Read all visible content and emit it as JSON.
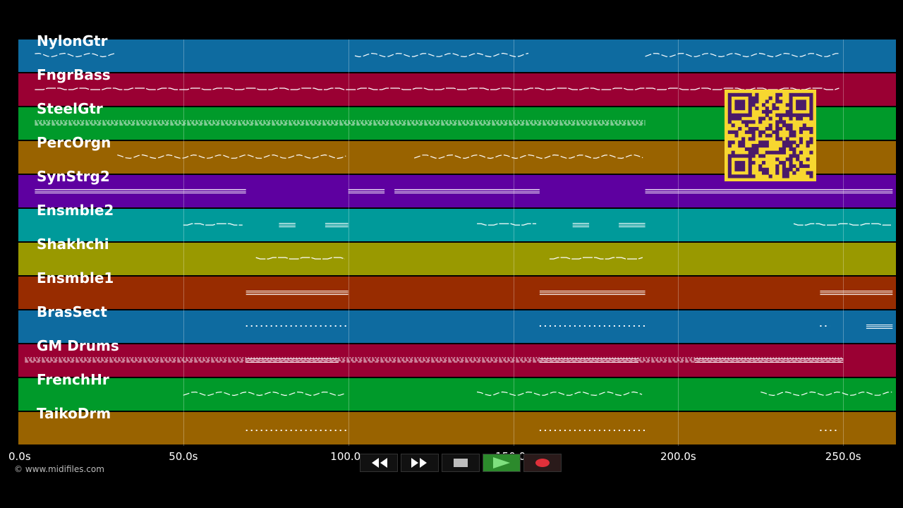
{
  "tracks": [
    {
      "name": "NylonGtr",
      "color": "#0e6ba0",
      "notes": [
        [
          5,
          30,
          "wave"
        ],
        [
          102,
          155,
          "wave"
        ],
        [
          190,
          250,
          "wave"
        ]
      ]
    },
    {
      "name": "FngrBass",
      "color": "#9a0033",
      "notes": [
        [
          5,
          250,
          "line"
        ]
      ]
    },
    {
      "name": "SteelGtr",
      "color": "#009a2a",
      "notes": [
        [
          5,
          190,
          "dense"
        ]
      ]
    },
    {
      "name": "PercOrgn",
      "color": "#996300",
      "notes": [
        [
          30,
          100,
          "wave"
        ],
        [
          120,
          190,
          "wave"
        ]
      ]
    },
    {
      "name": "SynStrg2",
      "color": "#5e00a0",
      "notes": [
        [
          5,
          69,
          "bar"
        ],
        [
          100,
          111,
          "bar"
        ],
        [
          114,
          158,
          "bar"
        ],
        [
          190,
          250,
          "bar"
        ],
        [
          245,
          265,
          "bar"
        ]
      ]
    },
    {
      "name": "Ensmble2",
      "color": "#009a9a",
      "notes": [
        [
          50,
          69,
          "line"
        ],
        [
          79,
          84,
          "bar"
        ],
        [
          93,
          100,
          "bar"
        ],
        [
          139,
          158,
          "line"
        ],
        [
          168,
          173,
          "bar"
        ],
        [
          182,
          190,
          "bar"
        ],
        [
          235,
          265,
          "line"
        ]
      ]
    },
    {
      "name": "Shakhchi",
      "color": "#999900",
      "notes": [
        [
          72,
          100,
          "line"
        ],
        [
          161,
          190,
          "line"
        ]
      ]
    },
    {
      "name": "Ensmble1",
      "color": "#982c00",
      "notes": [
        [
          69,
          100,
          "bar"
        ],
        [
          158,
          190,
          "bar"
        ],
        [
          243,
          265,
          "bar"
        ]
      ]
    },
    {
      "name": "BrasSect",
      "color": "#0e6ba0",
      "notes": [
        [
          69,
          100,
          "dots"
        ],
        [
          158,
          190,
          "dots"
        ],
        [
          243,
          246,
          "dots"
        ],
        [
          257,
          265,
          "bar"
        ]
      ]
    },
    {
      "name": "GM Drums",
      "color": "#9a0033",
      "notes": [
        [
          2,
          250,
          "dense"
        ],
        [
          69,
          97,
          "bar"
        ],
        [
          158,
          188,
          "bar"
        ],
        [
          205,
          250,
          "bar"
        ]
      ]
    },
    {
      "name": "FrenchHr",
      "color": "#009a2a",
      "notes": [
        [
          50,
          100,
          "wave"
        ],
        [
          139,
          190,
          "wave"
        ],
        [
          225,
          265,
          "wave"
        ]
      ]
    },
    {
      "name": "TaikoDrm",
      "color": "#996300",
      "notes": [
        [
          69,
          100,
          "dots"
        ],
        [
          158,
          190,
          "dots"
        ],
        [
          243,
          249,
          "dots"
        ]
      ]
    }
  ],
  "timeline": {
    "max_seconds": 266,
    "grid_seconds": [
      50,
      100,
      150,
      200,
      250
    ]
  },
  "ticks": [
    "0.0s",
    "50.0s",
    "100.0s",
    "150.0s",
    "200.0s",
    "250.0s"
  ],
  "copyright": "© www.midifiles.com",
  "transport": {
    "buttons": [
      {
        "name": "rewind-button",
        "icon": "rewind-icon"
      },
      {
        "name": "fast-forward-button",
        "icon": "fast-forward-icon"
      },
      {
        "name": "stop-button",
        "icon": "stop-icon"
      },
      {
        "name": "play-button",
        "icon": "play-icon"
      },
      {
        "name": "record-button",
        "icon": "record-icon"
      }
    ]
  }
}
